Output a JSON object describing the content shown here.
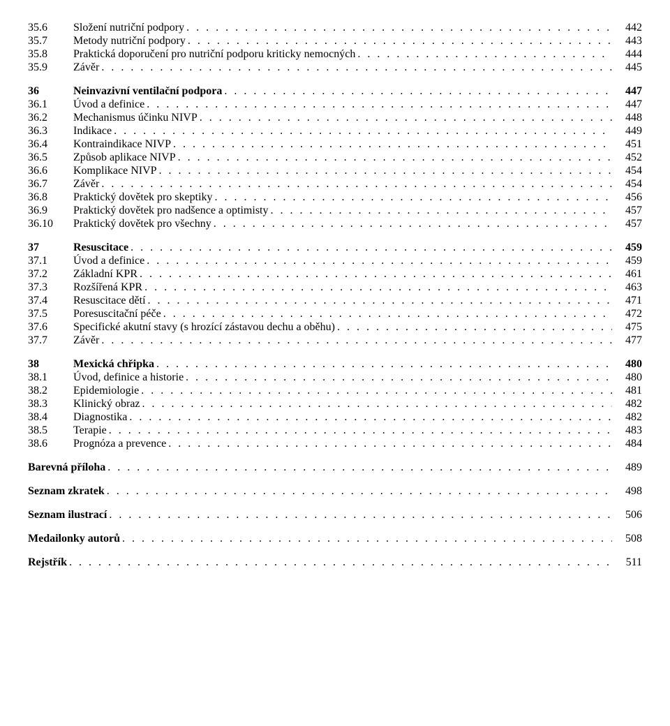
{
  "dot_fill": ". . . . . . . . . . . . . . . . . . . . . . . . . . . . . . . . . . . . . . . . . . . . . . . . . . . . . . . . . . . . . . . . . . . . . . . . . . . . . . . . . . . . . . . . . . . . . . . . . . . . . . . . . . . . . . . . . . . . . . . . . . . . . . .",
  "sections": [
    {
      "num": "35.6",
      "title": "Složení nutriční podpory",
      "page": "442",
      "bold": false
    },
    {
      "num": "35.7",
      "title": "Metody nutriční podpory",
      "page": "443",
      "bold": false
    },
    {
      "num": "35.8",
      "title": "Praktická doporučení pro nutriční podporu kriticky nemocných",
      "page": "444",
      "bold": false
    },
    {
      "num": "35.9",
      "title": "Závěr",
      "page": "445",
      "bold": false
    },
    {
      "gap": true
    },
    {
      "num": "36",
      "title": "Neinvazivní ventilační podpora",
      "page": "447",
      "bold": true
    },
    {
      "num": "36.1",
      "title": "Úvod a definice",
      "page": "447",
      "bold": false
    },
    {
      "num": "36.2",
      "title": "Mechanismus účinku NIVP",
      "page": "448",
      "bold": false
    },
    {
      "num": "36.3",
      "title": "Indikace",
      "page": "449",
      "bold": false
    },
    {
      "num": "36.4",
      "title": "Kontraindikace NIVP",
      "page": "451",
      "bold": false
    },
    {
      "num": "36.5",
      "title": "Způsob aplikace NIVP",
      "page": "452",
      "bold": false
    },
    {
      "num": "36.6",
      "title": "Komplikace NIVP",
      "page": "454",
      "bold": false
    },
    {
      "num": "36.7",
      "title": "Závěr",
      "page": "454",
      "bold": false
    },
    {
      "num": "36.8",
      "title": "Praktický dovětek pro skeptiky",
      "page": "456",
      "bold": false
    },
    {
      "num": "36.9",
      "title": "Praktický dovětek pro nadšence a optimisty",
      "page": "457",
      "bold": false
    },
    {
      "num": "36.10",
      "title": "Praktický dovětek pro všechny",
      "page": "457",
      "bold": false
    },
    {
      "gap": true
    },
    {
      "num": "37",
      "title": "Resuscitace",
      "page": "459",
      "bold": true
    },
    {
      "num": "37.1",
      "title": "Úvod a definice",
      "page": "459",
      "bold": false
    },
    {
      "num": "37.2",
      "title": "Základní KPR",
      "page": "461",
      "bold": false
    },
    {
      "num": "37.3",
      "title": "Rozšířená KPR",
      "page": "463",
      "bold": false
    },
    {
      "num": "37.4",
      "title": "Resuscitace dětí",
      "page": "471",
      "bold": false
    },
    {
      "num": "37.5",
      "title": "Poresuscitační péče",
      "page": "472",
      "bold": false
    },
    {
      "num": "37.6",
      "title": "Specifické akutní stavy (s hrozící zástavou dechu a oběhu)",
      "page": "475",
      "bold": false
    },
    {
      "num": "37.7",
      "title": "Závěr",
      "page": "477",
      "bold": false
    },
    {
      "gap": true
    },
    {
      "num": "38",
      "title": "Mexická chřipka",
      "page": "480",
      "bold": true
    },
    {
      "num": "38.1",
      "title": "Úvod, definice a historie",
      "page": "480",
      "bold": false
    },
    {
      "num": "38.2",
      "title": "Epidemiologie",
      "page": "481",
      "bold": false
    },
    {
      "num": "38.3",
      "title": "Klinický obraz",
      "page": "482",
      "bold": false
    },
    {
      "num": "38.4",
      "title": "Diagnostika",
      "page": "482",
      "bold": false
    },
    {
      "num": "38.5",
      "title": "Terapie",
      "page": "483",
      "bold": false
    },
    {
      "num": "38.6",
      "title": "Prognóza a prevence",
      "page": "484",
      "bold": false
    }
  ],
  "appendix": [
    {
      "title": "Barevná příloha",
      "page": "489"
    },
    {
      "title": "Seznam zkratek",
      "page": "498"
    },
    {
      "title": "Seznam ilustrací",
      "page": "506"
    },
    {
      "title": "Medailonky autorů",
      "page": "508"
    },
    {
      "title": "Rejstřík",
      "page": "511"
    }
  ]
}
